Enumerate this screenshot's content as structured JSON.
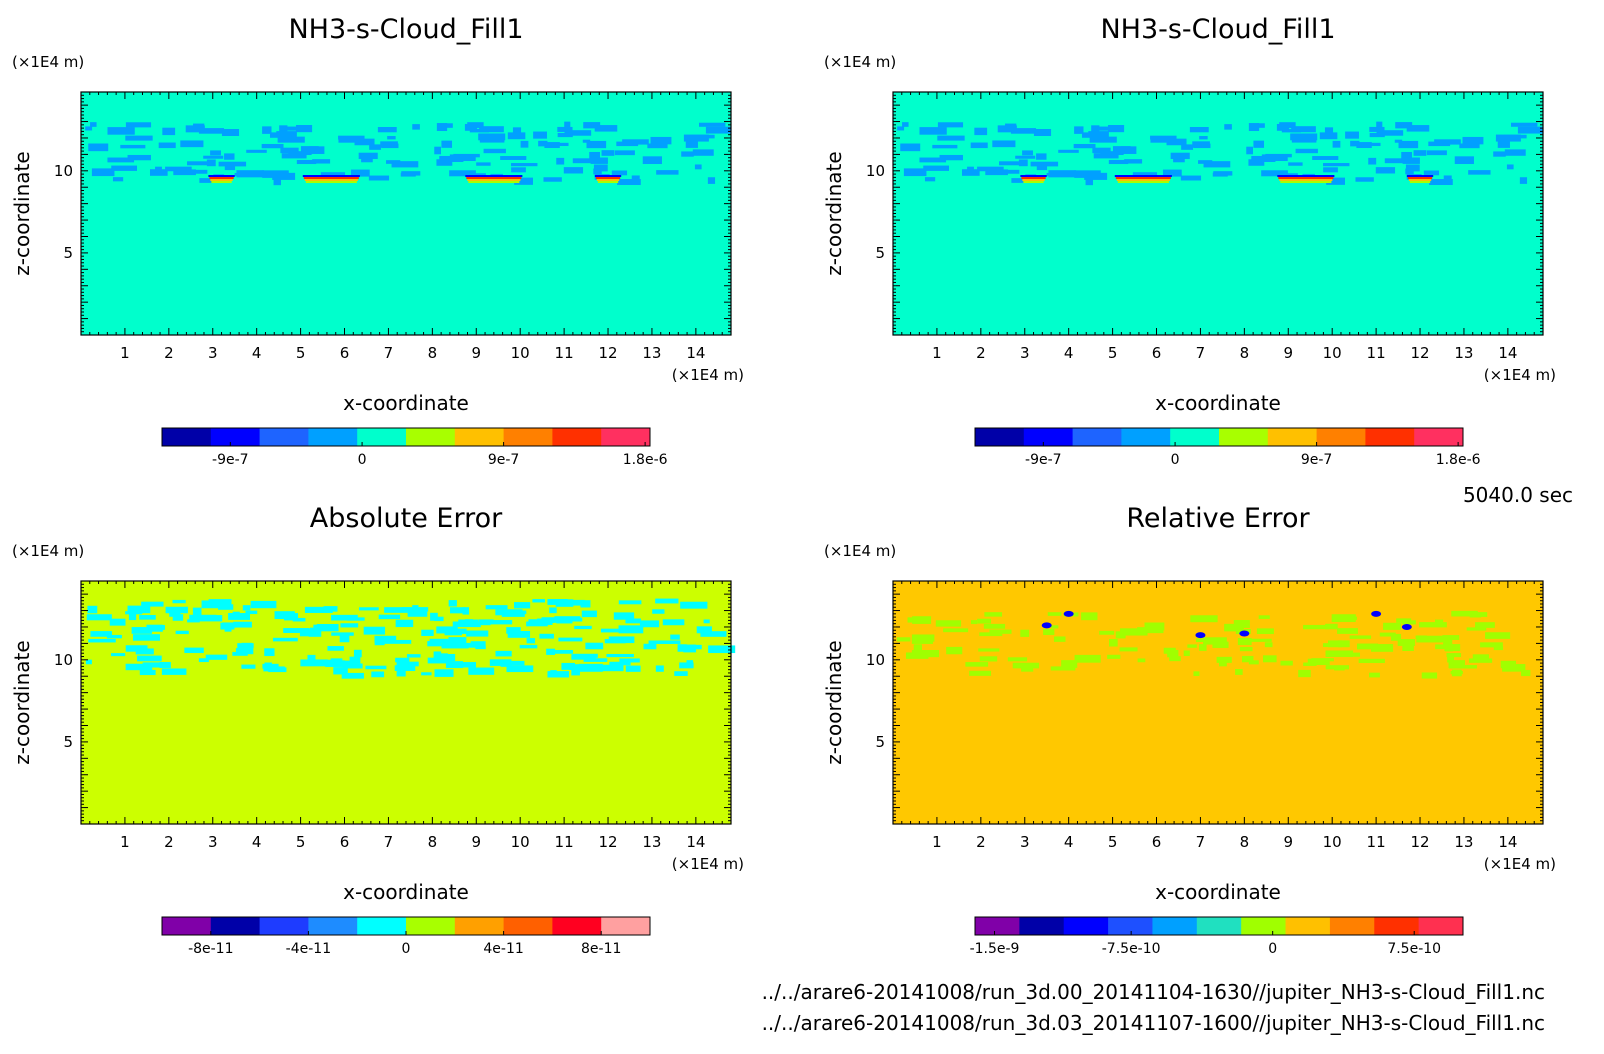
{
  "time_label": "5040.0 sec",
  "file_paths": [
    "../../arare6-20141008/run_3d.00_20141104-1630//jupiter_NH3-s-Cloud_Fill1.nc",
    "../../arare6-20141008/run_3d.03_20141107-1600//jupiter_NH3-s-Cloud_Fill1.nc"
  ],
  "chart_data": [
    {
      "type": "heatmap",
      "title": "NH3-s-Cloud_Fill1",
      "xlabel": "x-coordinate",
      "ylabel": "z-coordinate",
      "x_unit": "(×1E4 m)",
      "z_unit": "(×1E4 m)",
      "x_ticks": [
        1,
        2,
        3,
        4,
        5,
        6,
        7,
        8,
        9,
        10,
        11,
        12,
        13,
        14
      ],
      "z_ticks": [
        5,
        10
      ],
      "xlim": [
        0,
        14.8
      ],
      "zlim": [
        0,
        14.8
      ],
      "background_color": "#00ffcc",
      "colorbar": {
        "colors": [
          "#0000a8",
          "#0000ff",
          "#1e64ff",
          "#00a0ff",
          "#00ffcc",
          "#a8ff00",
          "#ffc000",
          "#ff8000",
          "#ff3000",
          "#ff3060"
        ],
        "ticks": [
          "-9e-7",
          "0",
          "9e-7",
          "1.8e-6"
        ]
      }
    },
    {
      "type": "heatmap",
      "title": "NH3-s-Cloud_Fill1",
      "xlabel": "x-coordinate",
      "ylabel": "z-coordinate",
      "x_unit": "(×1E4 m)",
      "z_unit": "(×1E4 m)",
      "x_ticks": [
        1,
        2,
        3,
        4,
        5,
        6,
        7,
        8,
        9,
        10,
        11,
        12,
        13,
        14
      ],
      "z_ticks": [
        5,
        10
      ],
      "xlim": [
        0,
        14.8
      ],
      "zlim": [
        0,
        14.8
      ],
      "background_color": "#00ffcc",
      "colorbar": {
        "colors": [
          "#0000a8",
          "#0000ff",
          "#1e64ff",
          "#00a0ff",
          "#00ffcc",
          "#a8ff00",
          "#ffc000",
          "#ff8000",
          "#ff3000",
          "#ff3060"
        ],
        "ticks": [
          "-9e-7",
          "0",
          "9e-7",
          "1.8e-6"
        ]
      }
    },
    {
      "type": "heatmap",
      "title": "Absolute Error",
      "xlabel": "x-coordinate",
      "ylabel": "z-coordinate",
      "x_unit": "(×1E4 m)",
      "z_unit": "(×1E4 m)",
      "x_ticks": [
        1,
        2,
        3,
        4,
        5,
        6,
        7,
        8,
        9,
        10,
        11,
        12,
        13,
        14
      ],
      "z_ticks": [
        5,
        10
      ],
      "xlim": [
        0,
        14.8
      ],
      "zlim": [
        0,
        14.8
      ],
      "background_color": "#ccff00",
      "colorbar": {
        "colors": [
          "#8000a8",
          "#0000a8",
          "#1e3cff",
          "#1e8cff",
          "#00ffff",
          "#a8ff00",
          "#ffa000",
          "#ff6000",
          "#ff0020",
          "#ffa0a0"
        ],
        "ticks": [
          "-8e-11",
          "-4e-11",
          "0",
          "4e-11",
          "8e-11"
        ]
      }
    },
    {
      "type": "heatmap",
      "title": "Relative Error",
      "xlabel": "x-coordinate",
      "ylabel": "z-coordinate",
      "x_unit": "(×1E4 m)",
      "z_unit": "(×1E4 m)",
      "x_ticks": [
        1,
        2,
        3,
        4,
        5,
        6,
        7,
        8,
        9,
        10,
        11,
        12,
        13,
        14
      ],
      "z_ticks": [
        5,
        10
      ],
      "xlim": [
        0,
        14.8
      ],
      "zlim": [
        0,
        14.8
      ],
      "background_color": "#ffc800",
      "colorbar": {
        "colors": [
          "#8000a8",
          "#0000a8",
          "#0000ff",
          "#1e50ff",
          "#00a0ff",
          "#20e0c0",
          "#a0ff00",
          "#ffc000",
          "#ff8000",
          "#ff3000",
          "#ff3050"
        ],
        "ticks": [
          "-1.5e-9",
          "-7.5e-10",
          "0",
          "7.5e-10"
        ]
      }
    }
  ]
}
